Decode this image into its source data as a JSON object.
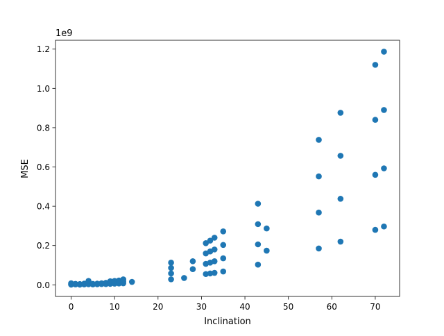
{
  "chart_data": {
    "type": "scatter",
    "xlabel": "Inclination",
    "ylabel": "MSE",
    "offset_label": "1e9",
    "xlim": [
      -3.6,
      75.6
    ],
    "ylim": [
      -0.059,
      1.245
    ],
    "scale": 1000000000,
    "xticks": [
      0,
      10,
      20,
      30,
      40,
      50,
      60,
      70
    ],
    "xtick_labels": [
      "0",
      "10",
      "20",
      "30",
      "40",
      "50",
      "60",
      "70"
    ],
    "yticks": [
      0.0,
      0.2,
      0.4,
      0.6,
      0.8,
      1.0,
      1.2
    ],
    "ytick_labels": [
      "0.0",
      "0.2",
      "0.4",
      "0.6",
      "0.8",
      "1.0",
      "1.2"
    ],
    "grid": false,
    "marker_color": "#1f77b4",
    "series": [
      {
        "points": [
          [
            0,
            0.001
          ],
          [
            0,
            0.004
          ],
          [
            0,
            0.008
          ],
          [
            1,
            0.002
          ],
          [
            1,
            0.005
          ],
          [
            2,
            0.001
          ],
          [
            2,
            0.004
          ],
          [
            3,
            0.002
          ],
          [
            3,
            0.006
          ],
          [
            4,
            0.003
          ],
          [
            4,
            0.009
          ],
          [
            4,
            0.02
          ],
          [
            5,
            0.002
          ],
          [
            5,
            0.005
          ],
          [
            6,
            0.003
          ],
          [
            6,
            0.006
          ],
          [
            7,
            0.004
          ],
          [
            7,
            0.008
          ],
          [
            8,
            0.004
          ],
          [
            8,
            0.01
          ],
          [
            9,
            0.005
          ],
          [
            9,
            0.012
          ],
          [
            9,
            0.018
          ],
          [
            10,
            0.006
          ],
          [
            10,
            0.013
          ],
          [
            10,
            0.02
          ],
          [
            11,
            0.007
          ],
          [
            11,
            0.015
          ],
          [
            11,
            0.022
          ],
          [
            12,
            0.008
          ],
          [
            12,
            0.018
          ],
          [
            12,
            0.028
          ],
          [
            14,
            0.015
          ],
          [
            23,
            0.028
          ],
          [
            23,
            0.058
          ],
          [
            23,
            0.086
          ],
          [
            23,
            0.113
          ],
          [
            26,
            0.035
          ],
          [
            28,
            0.08
          ],
          [
            28,
            0.12
          ],
          [
            31,
            0.055
          ],
          [
            31,
            0.107
          ],
          [
            31,
            0.16
          ],
          [
            31,
            0.212
          ],
          [
            32,
            0.058
          ],
          [
            32,
            0.113
          ],
          [
            32,
            0.17
          ],
          [
            32,
            0.225
          ],
          [
            33,
            0.061
          ],
          [
            33,
            0.12
          ],
          [
            33,
            0.18
          ],
          [
            33,
            0.24
          ],
          [
            35,
            0.068
          ],
          [
            35,
            0.135
          ],
          [
            35,
            0.203
          ],
          [
            35,
            0.272
          ],
          [
            43,
            0.103
          ],
          [
            43,
            0.206
          ],
          [
            43,
            0.309
          ],
          [
            43,
            0.413
          ],
          [
            45,
            0.174
          ],
          [
            45,
            0.287
          ],
          [
            57,
            0.185
          ],
          [
            57,
            0.368
          ],
          [
            57,
            0.552
          ],
          [
            57,
            0.738
          ],
          [
            62,
            0.22
          ],
          [
            62,
            0.438
          ],
          [
            62,
            0.657
          ],
          [
            62,
            0.876
          ],
          [
            70,
            0.28
          ],
          [
            70,
            0.56
          ],
          [
            70,
            0.84
          ],
          [
            70,
            1.12
          ],
          [
            72,
            0.297
          ],
          [
            72,
            0.593
          ],
          [
            72,
            0.89
          ],
          [
            72,
            1.187
          ]
        ]
      }
    ]
  }
}
